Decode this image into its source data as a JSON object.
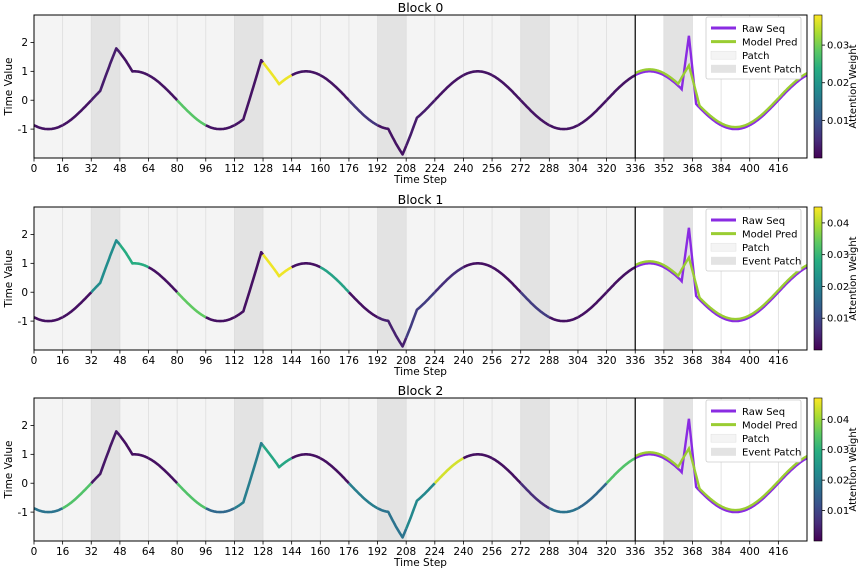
{
  "colors": {
    "raw": "#8a2be2",
    "pred": "#9acd32",
    "patch": "#f4f4f4",
    "event_patch": "#e3e3e3",
    "viridis": [
      "#440154",
      "#472c7a",
      "#3b518b",
      "#2c718e",
      "#21908d",
      "#27ad81",
      "#5cc863",
      "#aadc32",
      "#fde725"
    ]
  },
  "chart_data": [
    {
      "type": "line",
      "title": "Block 0",
      "xlabel": "Time Step",
      "ylabel": "Time Value",
      "xlim": [
        0,
        432
      ],
      "ylim": [
        -2,
        2.95
      ],
      "x_ticks": [
        0,
        16,
        32,
        48,
        64,
        80,
        96,
        112,
        128,
        144,
        160,
        176,
        192,
        208,
        224,
        240,
        256,
        272,
        288,
        304,
        320,
        336,
        352,
        368,
        384,
        400,
        416
      ],
      "y_ticks": [
        -1,
        0,
        1,
        2
      ],
      "context_end": 336,
      "patch_size": 16,
      "event_patches": [
        [
          32,
          48
        ],
        [
          112,
          128
        ],
        [
          192,
          208
        ],
        [
          272,
          288
        ],
        [
          352,
          368
        ]
      ],
      "legend": [
        "Raw Seq",
        "Model Pred",
        "Patch",
        "Event Patch"
      ],
      "colorbar": {
        "label": "Attention Weight",
        "ticks": [
          0.01,
          0.02,
          0.03
        ],
        "min": 0,
        "max": 0.038
      },
      "patch_attention": [
        0.002,
        0.002,
        0.003,
        0.002,
        0.002,
        0.028,
        0.002,
        0.002,
        0.037,
        0.002,
        0.002,
        0.006,
        0.002,
        0.003,
        0.002,
        0.002,
        0.002,
        0.002,
        0.002,
        0.002,
        0.002
      ]
    },
    {
      "type": "line",
      "title": "Block 1",
      "xlabel": "Time Step",
      "ylabel": "Time Value",
      "xlim": [
        0,
        432
      ],
      "ylim": [
        -2,
        2.95
      ],
      "x_ticks": [
        0,
        16,
        32,
        48,
        64,
        80,
        96,
        112,
        128,
        144,
        160,
        176,
        192,
        208,
        224,
        240,
        256,
        272,
        288,
        304,
        320,
        336,
        352,
        368,
        384,
        400,
        416
      ],
      "y_ticks": [
        -1,
        0,
        1,
        2
      ],
      "context_end": 336,
      "patch_size": 16,
      "event_patches": [
        [
          32,
          48
        ],
        [
          112,
          128
        ],
        [
          192,
          208
        ],
        [
          272,
          288
        ],
        [
          352,
          368
        ]
      ],
      "legend": [
        "Raw Seq",
        "Model Pred",
        "Patch",
        "Event Patch"
      ],
      "colorbar": {
        "label": "Attention Weight",
        "ticks": [
          0.01,
          0.02,
          0.03,
          0.04
        ],
        "min": 0,
        "max": 0.045
      },
      "patch_attention": [
        0.002,
        0.002,
        0.022,
        0.028,
        0.002,
        0.034,
        0.002,
        0.002,
        0.044,
        0.002,
        0.026,
        0.002,
        0.004,
        0.008,
        0.006,
        0.002,
        0.002,
        0.008,
        0.002,
        0.002,
        0.002
      ]
    },
    {
      "type": "line",
      "title": "Block 2",
      "xlabel": "Time Step",
      "ylabel": "Time Value",
      "xlim": [
        0,
        432
      ],
      "ylim": [
        -2,
        2.95
      ],
      "x_ticks": [
        0,
        16,
        32,
        48,
        64,
        80,
        96,
        112,
        128,
        144,
        160,
        176,
        192,
        208,
        224,
        240,
        256,
        272,
        288,
        304,
        320,
        336,
        352,
        368,
        384,
        400,
        416
      ],
      "y_ticks": [
        -1,
        0,
        1,
        2
      ],
      "context_end": 336,
      "patch_size": 16,
      "event_patches": [
        [
          32,
          48
        ],
        [
          112,
          128
        ],
        [
          192,
          208
        ],
        [
          272,
          288
        ],
        [
          352,
          368
        ]
      ],
      "legend": [
        "Raw Seq",
        "Model Pred",
        "Patch",
        "Event Patch"
      ],
      "colorbar": {
        "label": "Attention Weight",
        "ticks": [
          0.01,
          0.02,
          0.03,
          0.04
        ],
        "min": 0,
        "max": 0.047
      },
      "patch_attention": [
        0.018,
        0.034,
        0.003,
        0.002,
        0.002,
        0.034,
        0.016,
        0.02,
        0.028,
        0.002,
        0.002,
        0.02,
        0.018,
        0.022,
        0.044,
        0.002,
        0.002,
        0.006,
        0.018,
        0.016,
        0.034
      ]
    }
  ]
}
